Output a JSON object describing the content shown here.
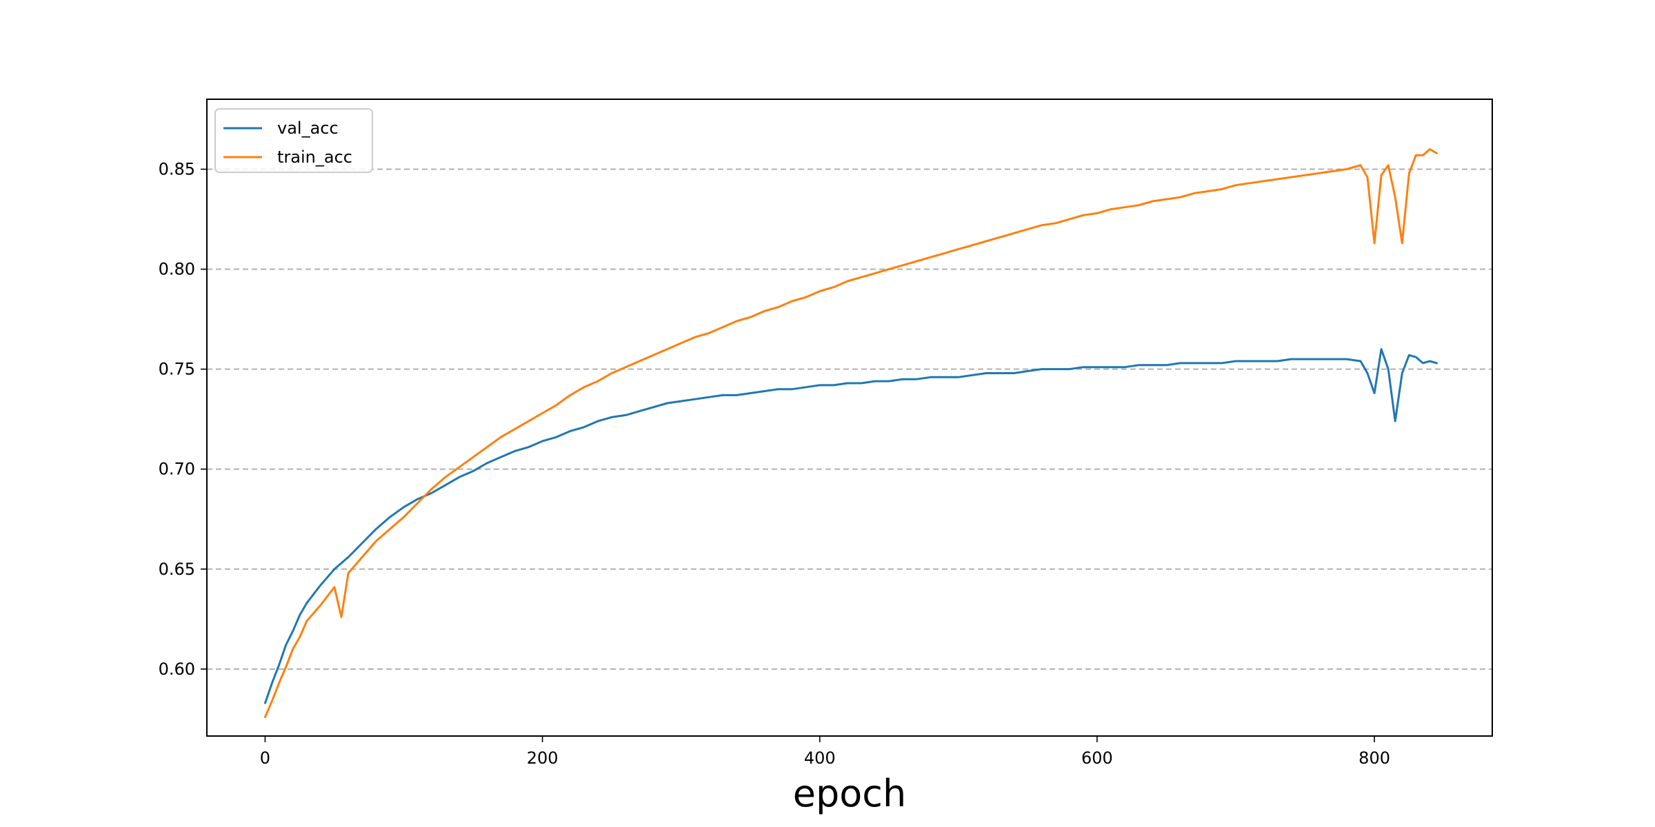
{
  "chart_data": {
    "type": "line",
    "title": "",
    "xlabel": "epoch",
    "ylabel": "",
    "xlim": [
      -42,
      885
    ],
    "ylim": [
      0.5665,
      0.885
    ],
    "xticks": [
      0,
      200,
      400,
      600,
      800
    ],
    "yticks": [
      0.6,
      0.65,
      0.7,
      0.75,
      0.8,
      0.85
    ],
    "grid": {
      "y": true,
      "x": false,
      "style": "dashed"
    },
    "legend": {
      "position": "top-left"
    },
    "series": [
      {
        "name": "val_acc",
        "color": "#1f77b4",
        "x": [
          0,
          5,
          10,
          15,
          20,
          25,
          30,
          40,
          50,
          60,
          70,
          80,
          90,
          100,
          110,
          120,
          130,
          140,
          150,
          160,
          170,
          180,
          190,
          200,
          210,
          220,
          230,
          240,
          250,
          260,
          270,
          280,
          290,
          300,
          310,
          320,
          330,
          340,
          350,
          360,
          370,
          380,
          390,
          400,
          410,
          420,
          430,
          440,
          450,
          460,
          470,
          480,
          490,
          500,
          510,
          520,
          530,
          540,
          550,
          560,
          570,
          580,
          590,
          600,
          610,
          620,
          630,
          640,
          650,
          660,
          670,
          680,
          690,
          700,
          710,
          720,
          730,
          740,
          750,
          760,
          770,
          780,
          790,
          795,
          800,
          805,
          810,
          815,
          820,
          825,
          830,
          835,
          840,
          845
        ],
        "values": [
          0.583,
          0.593,
          0.602,
          0.612,
          0.619,
          0.627,
          0.633,
          0.642,
          0.65,
          0.656,
          0.663,
          0.67,
          0.676,
          0.681,
          0.685,
          0.688,
          0.692,
          0.696,
          0.699,
          0.703,
          0.706,
          0.709,
          0.711,
          0.714,
          0.716,
          0.719,
          0.721,
          0.724,
          0.726,
          0.727,
          0.729,
          0.731,
          0.733,
          0.734,
          0.735,
          0.736,
          0.737,
          0.737,
          0.738,
          0.739,
          0.74,
          0.74,
          0.741,
          0.742,
          0.742,
          0.743,
          0.743,
          0.744,
          0.744,
          0.745,
          0.745,
          0.746,
          0.746,
          0.746,
          0.747,
          0.748,
          0.748,
          0.748,
          0.749,
          0.75,
          0.75,
          0.75,
          0.751,
          0.751,
          0.751,
          0.751,
          0.752,
          0.752,
          0.752,
          0.753,
          0.753,
          0.753,
          0.753,
          0.754,
          0.754,
          0.754,
          0.754,
          0.755,
          0.755,
          0.755,
          0.755,
          0.755,
          0.754,
          0.748,
          0.738,
          0.76,
          0.75,
          0.724,
          0.748,
          0.757,
          0.756,
          0.753,
          0.754,
          0.753
        ]
      },
      {
        "name": "train_acc",
        "color": "#ff7f0e",
        "x": [
          0,
          5,
          10,
          15,
          20,
          25,
          30,
          40,
          50,
          55,
          60,
          70,
          80,
          90,
          100,
          110,
          120,
          130,
          140,
          150,
          160,
          170,
          180,
          190,
          200,
          210,
          220,
          230,
          240,
          250,
          260,
          270,
          280,
          290,
          300,
          310,
          320,
          330,
          340,
          350,
          360,
          370,
          380,
          390,
          400,
          410,
          420,
          430,
          440,
          450,
          460,
          470,
          480,
          490,
          500,
          510,
          520,
          530,
          540,
          550,
          560,
          570,
          580,
          590,
          600,
          610,
          620,
          630,
          640,
          650,
          660,
          670,
          680,
          690,
          700,
          710,
          720,
          730,
          740,
          750,
          760,
          770,
          780,
          790,
          795,
          800,
          805,
          810,
          815,
          820,
          825,
          830,
          835,
          840,
          845
        ],
        "values": [
          0.576,
          0.584,
          0.593,
          0.601,
          0.61,
          0.616,
          0.624,
          0.632,
          0.641,
          0.626,
          0.648,
          0.656,
          0.664,
          0.67,
          0.676,
          0.683,
          0.69,
          0.696,
          0.701,
          0.706,
          0.711,
          0.716,
          0.72,
          0.724,
          0.728,
          0.732,
          0.737,
          0.741,
          0.744,
          0.748,
          0.751,
          0.754,
          0.757,
          0.76,
          0.763,
          0.766,
          0.768,
          0.771,
          0.774,
          0.776,
          0.779,
          0.781,
          0.784,
          0.786,
          0.789,
          0.791,
          0.794,
          0.796,
          0.798,
          0.8,
          0.802,
          0.804,
          0.806,
          0.808,
          0.81,
          0.812,
          0.814,
          0.816,
          0.818,
          0.82,
          0.822,
          0.823,
          0.825,
          0.827,
          0.828,
          0.83,
          0.831,
          0.832,
          0.834,
          0.835,
          0.836,
          0.838,
          0.839,
          0.84,
          0.842,
          0.843,
          0.844,
          0.845,
          0.846,
          0.847,
          0.848,
          0.849,
          0.85,
          0.852,
          0.846,
          0.813,
          0.847,
          0.852,
          0.836,
          0.813,
          0.848,
          0.857,
          0.857,
          0.86,
          0.858
        ]
      }
    ]
  }
}
